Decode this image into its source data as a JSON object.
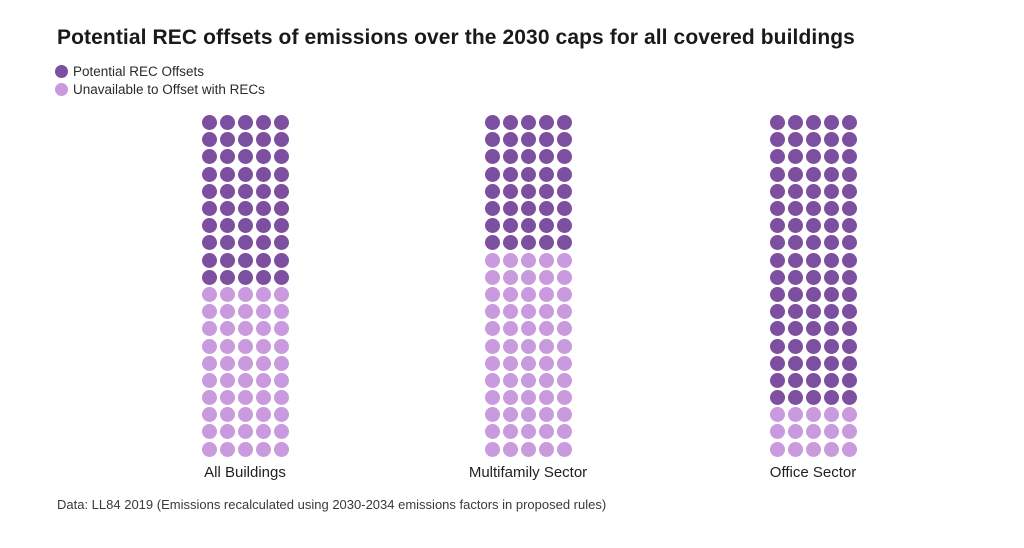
{
  "title": "Potential REC offsets of emissions over the 2030 caps for all covered buildings",
  "caption": "Data: LL84 2019 (Emissions recalculated using 2030-2034 emissions factors in proposed rules)",
  "colors": {
    "offset_dark_purple": "#7d4fa0",
    "unavailable_light_purple": "#c99ade"
  },
  "legend": {
    "position": "top-left",
    "items": [
      {
        "label": "Potential REC Offsets",
        "color": "#7d4fa0"
      },
      {
        "label": "Unavailable to Offset with RECs",
        "color": "#c99ade"
      }
    ]
  },
  "chart_data": {
    "type": "waffle",
    "title": "Potential REC offsets of emissions over the 2030 caps for all covered buildings",
    "dots_per_category": 100,
    "grid_columns": 5,
    "grid_rows": 20,
    "percent_per_dot": 1,
    "fill_order": "dark-series-from-top, light-series-below",
    "categories": [
      "All Buildings",
      "Multifamily Sector",
      "Office Sector"
    ],
    "series": [
      {
        "name": "Potential REC Offsets",
        "color": "#7d4fa0",
        "values": [
          50,
          40,
          85
        ]
      },
      {
        "name": "Unavailable to Offset with RECs",
        "color": "#c99ade",
        "values": [
          50,
          60,
          15
        ]
      }
    ],
    "legend_position": "top-left",
    "axes": "none",
    "grid_lines": false
  }
}
